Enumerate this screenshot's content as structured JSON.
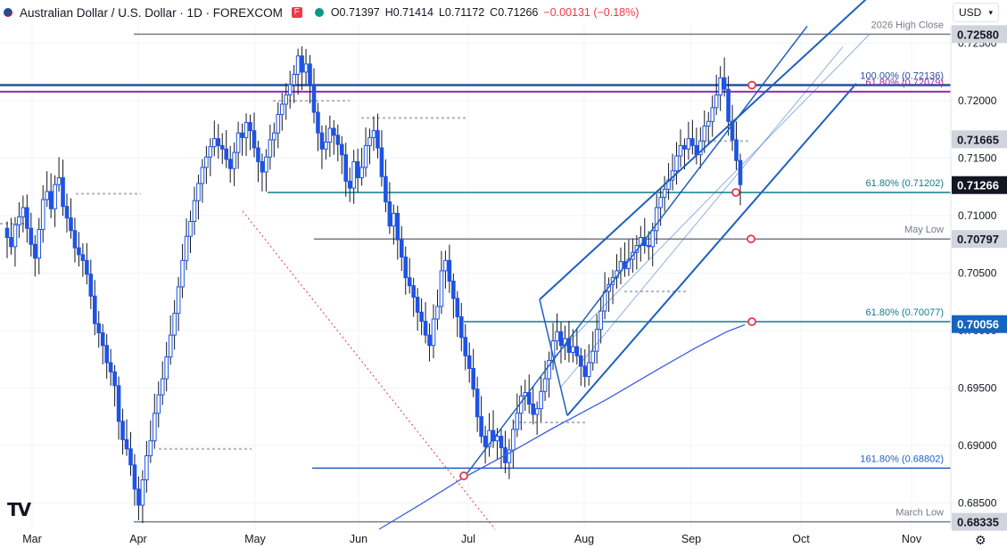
{
  "header": {
    "title": "Australian Dollar / U.S. Dollar · 1D · FOREXCOM",
    "marker": "F",
    "open": "O0.71397",
    "high": "H0.71414",
    "low": "L0.71172",
    "close": "C0.71266",
    "change": "−0.00131 (−0.18%)"
  },
  "currency_select": "USD",
  "logo": "TV",
  "chart_data": {
    "type": "candlestick",
    "y_axis": {
      "ylim": [
        0.6827,
        0.7266
      ],
      "ticks": [
        "0.72500",
        "0.72000",
        "0.71500",
        "0.71000",
        "0.70500",
        "0.70000",
        "0.69500",
        "0.69000",
        "0.68500"
      ]
    },
    "x_axis": {
      "ticks": [
        "Mar",
        "Apr",
        "May",
        "Jun",
        "Jul",
        "Aug",
        "Sep",
        "Oct",
        "Nov"
      ]
    },
    "price_labels": [
      {
        "text": "0.72580",
        "value": 0.7258,
        "style": "gray"
      },
      {
        "text": "0.71665",
        "value": 0.71665,
        "style": "gray"
      },
      {
        "text": "0.71266",
        "value": 0.71266,
        "style": "dark"
      },
      {
        "text": "0.70797",
        "value": 0.70797,
        "style": "gray"
      },
      {
        "text": "0.70056",
        "value": 0.70056,
        "style": "blue"
      },
      {
        "text": "0.68335",
        "value": 0.68335,
        "style": "gray"
      }
    ],
    "levels": [
      {
        "label": "2026 High Close",
        "value": 0.7258,
        "color": "#787b86"
      },
      {
        "label": "100.00% (0.72136)",
        "value": 0.72136,
        "color": "#2a4e9c"
      },
      {
        "label": "61.80% (0.72079)",
        "value": 0.72079,
        "color": "#9c27b0"
      },
      {
        "label": "61.80% (0.71202)",
        "value": 0.71202,
        "color": "#0f7c8c"
      },
      {
        "label": "May Low",
        "value": 0.70797,
        "color": "#787b86"
      },
      {
        "label": "61.80% (0.70077)",
        "value": 0.70077,
        "color": "#0f7c8c"
      },
      {
        "label": "161.80% (0.68802)",
        "value": 0.68802,
        "color": "#1f5fbf"
      },
      {
        "label": "March Low",
        "value": 0.68335,
        "color": "#787b86"
      }
    ],
    "colors": {
      "candle": "#1e53e5",
      "wick": "#131722",
      "channel": "#1f5fbf",
      "ma": "#3d5fe0",
      "circle": "#e53950"
    },
    "closes": [
      0.7081,
      0.7073,
      0.7092,
      0.7099,
      0.7107,
      0.7089,
      0.7075,
      0.7063,
      0.7088,
      0.7114,
      0.7121,
      0.7106,
      0.7127,
      0.7133,
      0.7108,
      0.7098,
      0.7087,
      0.7072,
      0.7066,
      0.7061,
      0.7049,
      0.703,
      0.7006,
      0.6998,
      0.6987,
      0.6972,
      0.6964,
      0.6952,
      0.6921,
      0.6905,
      0.6897,
      0.6883,
      0.6862,
      0.6848,
      0.687,
      0.6891,
      0.6904,
      0.6928,
      0.6944,
      0.6958,
      0.6977,
      0.6996,
      0.7015,
      0.7038,
      0.7061,
      0.7082,
      0.7095,
      0.7113,
      0.7128,
      0.7142,
      0.7151,
      0.716,
      0.7167,
      0.7161,
      0.7158,
      0.7149,
      0.7141,
      0.7155,
      0.7172,
      0.7168,
      0.7181,
      0.7174,
      0.7159,
      0.7147,
      0.7138,
      0.7151,
      0.7166,
      0.7172,
      0.7188,
      0.7197,
      0.7205,
      0.7214,
      0.7223,
      0.7239,
      0.7225,
      0.7232,
      0.7214,
      0.719,
      0.7172,
      0.7158,
      0.7164,
      0.7176,
      0.717,
      0.7162,
      0.7153,
      0.713,
      0.7124,
      0.7147,
      0.7133,
      0.7142,
      0.7161,
      0.7168,
      0.7174,
      0.7159,
      0.7134,
      0.7112,
      0.7091,
      0.7102,
      0.7079,
      0.7064,
      0.7046,
      0.7039,
      0.7029,
      0.7016,
      0.7008,
      0.6996,
      0.6987,
      0.701,
      0.7021,
      0.7052,
      0.7061,
      0.7043,
      0.7028,
      0.7012,
      0.6994,
      0.6978,
      0.6967,
      0.6949,
      0.6925,
      0.6908,
      0.6899,
      0.6913,
      0.6904,
      0.6908,
      0.6898,
      0.6885,
      0.6896,
      0.6914,
      0.6928,
      0.6943,
      0.6946,
      0.6936,
      0.6927,
      0.6932,
      0.6947,
      0.6958,
      0.6974,
      0.6991,
      0.6999,
      0.6987,
      0.6993,
      0.6981,
      0.6986,
      0.6978,
      0.6969,
      0.696,
      0.6972,
      0.6982,
      0.7001,
      0.7017,
      0.7034,
      0.704,
      0.7046,
      0.7052,
      0.706,
      0.7054,
      0.7062,
      0.7068,
      0.7074,
      0.7081,
      0.7074,
      0.7073,
      0.7087,
      0.7107,
      0.7116,
      0.7123,
      0.7131,
      0.7139,
      0.7152,
      0.7161,
      0.7158,
      0.7167,
      0.7161,
      0.7153,
      0.7165,
      0.7178,
      0.7182,
      0.7194,
      0.7205,
      0.722,
      0.721,
      0.7182,
      0.7166,
      0.7148,
      0.7127
    ]
  }
}
